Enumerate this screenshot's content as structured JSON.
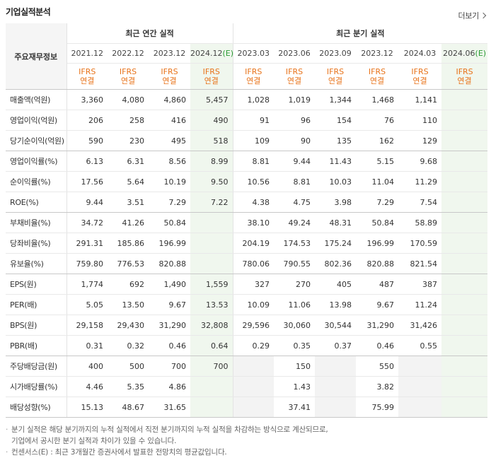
{
  "title": "기업실적분석",
  "more": "더보기",
  "header": {
    "label": "주요재무정보",
    "annual_group": "최근 연간 실적",
    "quarter_group": "최근 분기 실적",
    "periods": [
      {
        "name": "2021.12",
        "est": ""
      },
      {
        "name": "2022.12",
        "est": ""
      },
      {
        "name": "2023.12",
        "est": ""
      },
      {
        "name": "2024.12",
        "est": "(E)"
      },
      {
        "name": "2023.03",
        "est": ""
      },
      {
        "name": "2023.06",
        "est": ""
      },
      {
        "name": "2023.09",
        "est": ""
      },
      {
        "name": "2023.12",
        "est": ""
      },
      {
        "name": "2024.03",
        "est": ""
      },
      {
        "name": "2024.06",
        "est": "(E)"
      }
    ],
    "basis_line1": "IFRS",
    "basis_line2": "연결"
  },
  "rows": [
    {
      "label": "매출액(억원)",
      "values": [
        "3,360",
        "4,080",
        "4,860",
        "5,457",
        "1,028",
        "1,019",
        "1,344",
        "1,468",
        "1,141",
        ""
      ]
    },
    {
      "label": "영업이익(억원)",
      "values": [
        "206",
        "258",
        "416",
        "490",
        "91",
        "96",
        "154",
        "76",
        "110",
        ""
      ]
    },
    {
      "label": "당기순이익(억원)",
      "values": [
        "590",
        "230",
        "495",
        "518",
        "109",
        "90",
        "135",
        "162",
        "129",
        ""
      ]
    },
    {
      "label": "영업이익률(%)",
      "values": [
        "6.13",
        "6.31",
        "8.56",
        "8.99",
        "8.81",
        "9.44",
        "11.43",
        "5.15",
        "9.68",
        ""
      ]
    },
    {
      "label": "순이익률(%)",
      "values": [
        "17.56",
        "5.64",
        "10.19",
        "9.50",
        "10.56",
        "8.81",
        "10.03",
        "11.04",
        "11.29",
        ""
      ]
    },
    {
      "label": "ROE(%)",
      "values": [
        "9.44",
        "3.51",
        "7.29",
        "7.22",
        "4.38",
        "4.75",
        "3.98",
        "7.29",
        "7.54",
        ""
      ]
    },
    {
      "label": "부채비율(%)",
      "values": [
        "34.72",
        "41.26",
        "50.84",
        "",
        "38.10",
        "49.24",
        "48.31",
        "50.84",
        "58.89",
        ""
      ]
    },
    {
      "label": "당좌비율(%)",
      "values": [
        "291.31",
        "185.86",
        "196.99",
        "",
        "204.19",
        "174.53",
        "175.24",
        "196.99",
        "170.59",
        ""
      ]
    },
    {
      "label": "유보율(%)",
      "values": [
        "759.80",
        "776.53",
        "820.88",
        "",
        "780.06",
        "790.55",
        "802.36",
        "820.88",
        "821.54",
        ""
      ]
    },
    {
      "label": "EPS(원)",
      "values": [
        "1,774",
        "692",
        "1,490",
        "1,559",
        "327",
        "270",
        "405",
        "487",
        "387",
        ""
      ]
    },
    {
      "label": "PER(배)",
      "values": [
        "5.05",
        "13.50",
        "9.67",
        "13.53",
        "10.09",
        "11.06",
        "13.98",
        "9.67",
        "11.24",
        ""
      ]
    },
    {
      "label": "BPS(원)",
      "values": [
        "29,158",
        "29,430",
        "31,290",
        "32,808",
        "29,596",
        "30,060",
        "30,544",
        "31,290",
        "31,426",
        ""
      ]
    },
    {
      "label": "PBR(배)",
      "values": [
        "0.31",
        "0.32",
        "0.46",
        "0.64",
        "0.29",
        "0.35",
        "0.37",
        "0.46",
        "0.55",
        ""
      ]
    },
    {
      "label": "주당배당금(원)",
      "values": [
        "400",
        "500",
        "700",
        "700",
        "",
        "150",
        "",
        "550",
        "",
        ""
      ]
    },
    {
      "label": "시가배당률(%)",
      "values": [
        "4.46",
        "5.35",
        "4.86",
        "",
        "",
        "1.43",
        "",
        "3.82",
        "",
        ""
      ]
    },
    {
      "label": "배당성향(%)",
      "values": [
        "15.13",
        "48.67",
        "31.65",
        "",
        "",
        "37.41",
        "",
        "75.99",
        "",
        ""
      ]
    }
  ],
  "notes": [
    "분기 실적은 해당 분기까지의 누적 실적에서 직전 분기까지의 누적 실적을 차감하는 방식으로 계산되므로,",
    "기업에서 공시한 분기 실적과 차이가 있을 수 있습니다.",
    "컨센서스(E) : 최근 3개월간 증권사에서 발표한 전망치의 평균값입니다."
  ],
  "colors": {
    "ifrs": "#e8731a",
    "estimate_bg": "#f0f7ee",
    "estimate_text": "#2c9b34",
    "nodata_bg": "#f3f3f3"
  }
}
